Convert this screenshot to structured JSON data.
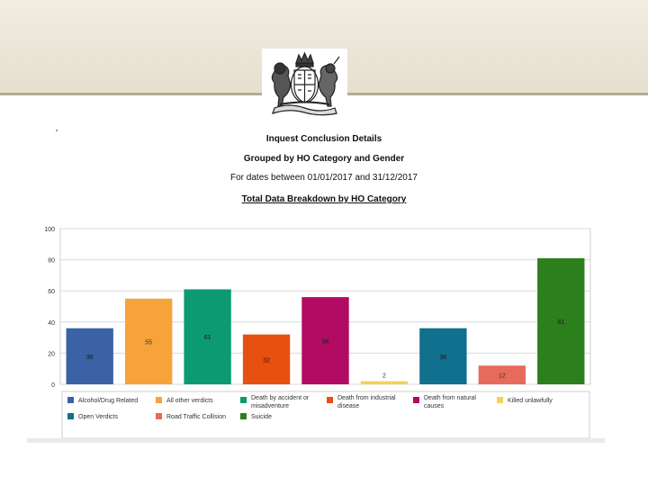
{
  "header": {
    "title": "Inquest Conclusion Details",
    "subtitle": "Grouped by HO Category and Gender",
    "date_range": "For dates between 01/01/2017 and 31/12/2017",
    "section_title": "Total Data Breakdown by HO Category"
  },
  "crest": {
    "icon": "royal-coat-of-arms-icon"
  },
  "chart_data": {
    "type": "bar",
    "ylim": [
      0,
      100
    ],
    "yticks": [
      0,
      20,
      40,
      60,
      80,
      100
    ],
    "grid": true,
    "legend_position": "bottom",
    "categories": [
      "Alcohol/Drug Related",
      "All other verdicts",
      "Death by accident or misadventure",
      "Death from industrial disease",
      "Death from natural causes",
      "Killed unlawfully",
      "Open Verdicts",
      "Road Traffic Collision",
      "Suicide"
    ],
    "values": [
      36,
      55,
      61,
      32,
      56,
      2,
      36,
      12,
      81
    ],
    "colors": [
      "#3a62a5",
      "#f6a33a",
      "#0c9a73",
      "#e8500f",
      "#b30b63",
      "#f2d25a",
      "#10708e",
      "#e76b5d",
      "#2c7f1d"
    ]
  }
}
